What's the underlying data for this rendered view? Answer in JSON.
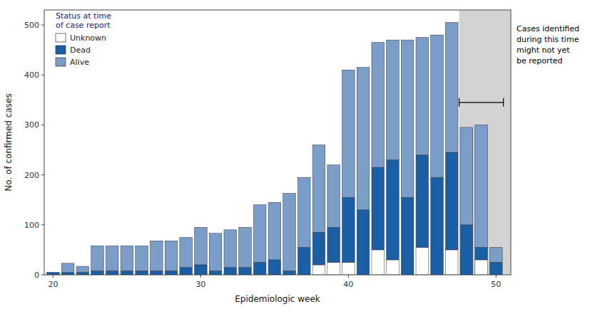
{
  "chart_data": {
    "type": "bar",
    "stacked": true,
    "x": [
      20,
      21,
      22,
      23,
      24,
      25,
      26,
      27,
      28,
      29,
      30,
      31,
      32,
      33,
      34,
      35,
      36,
      37,
      38,
      39,
      40,
      41,
      42,
      43,
      44,
      45,
      46,
      47,
      48,
      49,
      50
    ],
    "series": [
      {
        "name": "Unknown",
        "color": "#ffffff",
        "values": [
          0,
          0,
          0,
          0,
          0,
          0,
          0,
          0,
          0,
          0,
          0,
          0,
          0,
          0,
          0,
          0,
          0,
          0,
          20,
          25,
          25,
          0,
          50,
          30,
          0,
          55,
          0,
          50,
          0,
          30,
          0
        ]
      },
      {
        "name": "Dead",
        "color": "#1a5fa5",
        "values": [
          5,
          5,
          5,
          8,
          8,
          8,
          8,
          8,
          8,
          15,
          20,
          8,
          15,
          15,
          25,
          30,
          8,
          55,
          65,
          70,
          130,
          130,
          165,
          200,
          155,
          185,
          195,
          195,
          100,
          25,
          25
        ]
      },
      {
        "name": "Alive",
        "color": "#7b9ec9",
        "values": [
          0,
          18,
          12,
          50,
          50,
          50,
          50,
          60,
          60,
          60,
          75,
          75,
          75,
          80,
          115,
          115,
          155,
          140,
          175,
          125,
          255,
          285,
          250,
          240,
          315,
          235,
          285,
          260,
          195,
          245,
          30
        ]
      }
    ],
    "xlabel": "Epidemiologic week",
    "ylabel": "No. of confirmed cases",
    "xlim": [
      19.4,
      51.0
    ],
    "xticks": [
      20,
      30,
      40,
      50
    ],
    "ylim": [
      0,
      530
    ],
    "yticks": [
      0,
      100,
      200,
      300,
      400,
      500
    ],
    "legend": "upper left",
    "legend_title": "Status at time\nof case report",
    "legend_title_color": "#1a1a6e",
    "annotation": "Cases identified\nduring this time\nmight not yet\nbe reported",
    "shaded_x": [
      47.5,
      51.0
    ],
    "shaded_color": "#d3d3d3",
    "bracket_x": [
      47.5,
      50.5
    ],
    "bracket_y": 345,
    "grid": false
  }
}
